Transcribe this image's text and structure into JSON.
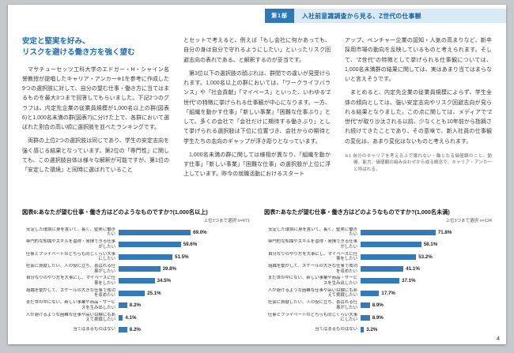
{
  "theme": {
    "accent_blue": "#2b79b9",
    "bar_blue": "#3679b9",
    "header_strip_bg": "#d9eaf7",
    "heading_text_blue": "#1b6db3",
    "page_bg": "#ffffff",
    "surround_bg": "#c6c9cb"
  },
  "header": {
    "part_label": "第1部",
    "section_title": "入社前意識調査から見る、Z世代の仕事観"
  },
  "page": {
    "number": "4"
  },
  "article": {
    "heading_line1": "安定と堅実を好み、",
    "heading_line2": "リスクを避ける働き方を強く望む",
    "columns": {
      "left": {
        "paragraphs": [
          "マサチューセッツ工科大学のエドガー・H・シャイン名誉教授が提唱したキャリア・アンカー※1を参考に作成した9つの選択肢に対して、自分の望む仕事・働き方に当てはまるものを最大3つまで回答してもらいました。下記2つのグラフは、内定先企業の従業員規模が1,000名以上の群(図表6)と1,000名未満の群(図表7)に分けた上で、各群において選ばれた割合の高い順に選択肢を並べたランキングです。",
          "両群の上位2つの選択肢は同じであり、学生の安定志向を強く感じる結果となっています。第2位の「専門性」に関しても、この選択肢自体は様々な解釈が可能ですが、第1位の「安定した環境」と同時に選ばれていること"
        ]
      },
      "middle": {
        "paragraphs": [
          "とセットで考えると、例えば「もし会社に何かあっても、自分の身は自分で守れるようにしたい」といったリスク回避志向の表れである、と解釈するのが妥当です。",
          "第3位以下の選択肢の顔ぶれは、群間での違いが見受けられます。1,000名以上の群においては、「ワークライフバランス」や「社会貢献」「マイペース」といった、いわゆる“Z世代”の特徴に挙げられる仕事観が中心になります。一方、「組織を動かす仕事」「新しい事業」「困難な仕事ぶり」として、多くの会社で「会社だけに期待する働きぶり」として挙げられる選択肢は下位に位置づき、会社からの期待と学生たちの志向のギャップが浮き彫りとなっています。",
          "1,000名未満の群に関しては様相が異なり、「組織を動かす仕事」「新しい事業」「困難な仕事」の選択肢が上位に浮上しています。昨今の就職活動におけるスタート"
        ]
      },
      "right": {
        "paragraphs": [
          "アップ、ベンチャー企業の認知・人気の高まりなど、新卒採用市場の動向を反映しているものと考えられます。そして、“Z世代”の特徴として挙げられる仕事観については、1,000名未満群の結果に関しては、実はあまり当てはまらないと言えそうです。",
          "まとめると、内定先企業の従業員規模によらず、学生全体の傾向としては、強い安定志向やリスク回避志向が見られる結果となりました。この点に関しては、メディアで“Z世代”が取り沙汰される以前、少なくとも10年前から指摘され続けてきたことであり、その意味で、新入社員の仕事観の変化は、あまり変化はないものと考えられます。"
        ],
        "footnote": "※1 自分のキャリアを考える上で譲れない・軸となる価値観のこと。動機、能力、価値観の組み合わせから成る概念で、キャリア・アンカーと呼ばれる。"
      }
    }
  },
  "chart_data": [
    {
      "type": "bar",
      "orientation": "horizontal",
      "title": "図表6:あなたが望む仕事・働き方はどのようなものですか?(1,000名以上)",
      "note": "上位3つまで選択 n=471",
      "unit": "%",
      "xlim": [
        0,
        100
      ],
      "grid": false,
      "legend": false,
      "categories": [
        "安定した環境に身を置いて、長く、堅実に働きたい",
        "専門的な知識やスキルを習得・発揮できる仕事がしたい",
        "仕事とプライベートのどちらも同じくらい大事にしたい",
        "社会に貢献したい、人の役に立ち、喜ばれる仕事がしたい",
        "自分なりのやり方を大事にし、マイペースに仕事をしたい",
        "組織を動かして、スケールの大きな仕事で成功を収めたい",
        "まだ世の中にない、新しい事業や商品・サービスを生み出したい",
        "人が避けるような困難な仕事や高い目標にもあえて挑戦したい",
        "当てはまるものはない"
      ],
      "values": [
        69.0,
        59.6,
        51.5,
        39.8,
        34.5,
        25.1,
        8.2,
        4.1,
        8.2
      ]
    },
    {
      "type": "bar",
      "orientation": "horizontal",
      "title": "図表7:あなたが望む仕事・働き方はどのようなものですか?(1,000名未満)",
      "note": "上位3つまで選択 n=124",
      "unit": "%",
      "xlim": [
        0,
        100
      ],
      "grid": false,
      "legend": false,
      "categories": [
        "安定した環境に身を置いて、長く、堅実に働きたい",
        "専門的な知識やスキルを習得・発揮できる仕事がしたい",
        "自分なりのやり方を大事にし、マイペースに仕事をしたい",
        "組織を動かして、スケールの大きな仕事で成功を収めたい",
        "まだ世の中にない、新しい事業や商品・サービスを生み出したい",
        "人が避けるような困難な仕事や高い目標にもあえて挑戦したい",
        "社会に貢献したい、人の役に立ち、喜ばれる仕事がしたい",
        "仕事とプライベートのどちらも同じくらい大事にしたい",
        "当てはまるものはない"
      ],
      "values": [
        71.8,
        58.1,
        53.2,
        41.1,
        37.1,
        17.7,
        8.9,
        8.9,
        3.2
      ]
    }
  ]
}
